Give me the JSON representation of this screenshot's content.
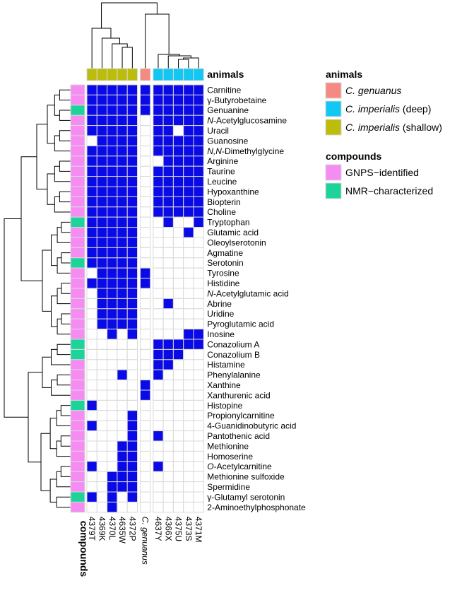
{
  "chart_data": {
    "type": "heatmap",
    "rows": [
      "Carnitine",
      "γ-Butyrobetaine",
      "Genuanine",
      "N-Acetylglucosamine",
      "Uracil",
      "Guanosine",
      "N,N-Dimethylglycine",
      "Arginine",
      "Taurine",
      "Leucine",
      "Hypoxanthine",
      "Biopterin",
      "Choline",
      "Tryptophan",
      "Glutamic acid",
      "Oleoylserotonin",
      "Agmatine",
      "Serotonin",
      "Tyrosine",
      "Histidine",
      "N-Acetylglutamic acid",
      "Abrine",
      "Uridine",
      "Pyroglutamic acid",
      "Inosine",
      "Conazolium A",
      "Conazolium B",
      "Histamine",
      "Phenylalanine",
      "Xanthine",
      "Xanthurenic acid",
      "Histopine",
      "Propionylcarnitine",
      "4-Guanidinobutyric acid",
      "Pantothenic acid",
      "Methionine",
      "Homoserine",
      "O-Acetylcarnitine",
      "Methionine sulfoxide",
      "Spermidine",
      "γ-Glutamyl serotonin",
      "2-Aminoethylphosphonate"
    ],
    "columns": [
      "4379T",
      "4369K",
      "4370L",
      "4635W",
      "4372P",
      "C. genuanus",
      "4637Y",
      "4366X",
      "4375U",
      "4373S",
      "4371M"
    ],
    "column_groups": [
      [
        0,
        1,
        2,
        3,
        4
      ],
      [
        5
      ],
      [
        6,
        7,
        8,
        9,
        10
      ]
    ],
    "values": [
      [
        1,
        1,
        1,
        1,
        1,
        1,
        1,
        1,
        1,
        1,
        1
      ],
      [
        1,
        1,
        1,
        1,
        1,
        1,
        1,
        1,
        1,
        1,
        1
      ],
      [
        1,
        1,
        1,
        1,
        1,
        1,
        1,
        1,
        1,
        1,
        1
      ],
      [
        1,
        1,
        1,
        1,
        1,
        0,
        1,
        1,
        1,
        1,
        1
      ],
      [
        1,
        1,
        1,
        1,
        1,
        0,
        1,
        1,
        0,
        1,
        1
      ],
      [
        0,
        1,
        1,
        1,
        1,
        0,
        1,
        1,
        1,
        1,
        1
      ],
      [
        1,
        1,
        1,
        1,
        1,
        0,
        1,
        1,
        1,
        1,
        1
      ],
      [
        1,
        1,
        1,
        1,
        1,
        0,
        0,
        1,
        1,
        1,
        1
      ],
      [
        1,
        1,
        1,
        1,
        1,
        0,
        1,
        1,
        1,
        1,
        1
      ],
      [
        1,
        1,
        1,
        1,
        1,
        0,
        1,
        1,
        1,
        1,
        1
      ],
      [
        1,
        1,
        1,
        1,
        1,
        0,
        1,
        1,
        1,
        1,
        1
      ],
      [
        1,
        1,
        1,
        1,
        1,
        0,
        1,
        1,
        1,
        1,
        1
      ],
      [
        1,
        1,
        1,
        1,
        1,
        0,
        1,
        1,
        1,
        1,
        1
      ],
      [
        1,
        1,
        1,
        1,
        1,
        0,
        0,
        1,
        0,
        0,
        1
      ],
      [
        1,
        1,
        1,
        1,
        1,
        0,
        0,
        0,
        0,
        1,
        0
      ],
      [
        1,
        1,
        1,
        1,
        1,
        0,
        0,
        0,
        0,
        0,
        0
      ],
      [
        1,
        1,
        1,
        1,
        1,
        0,
        0,
        0,
        0,
        0,
        0
      ],
      [
        1,
        1,
        1,
        1,
        1,
        0,
        0,
        0,
        0,
        0,
        0
      ],
      [
        0,
        1,
        1,
        1,
        1,
        1,
        0,
        0,
        0,
        0,
        0
      ],
      [
        1,
        1,
        1,
        1,
        1,
        1,
        0,
        0,
        0,
        0,
        0
      ],
      [
        0,
        1,
        1,
        1,
        1,
        0,
        0,
        0,
        0,
        0,
        0
      ],
      [
        0,
        1,
        1,
        1,
        1,
        0,
        0,
        1,
        0,
        0,
        0
      ],
      [
        0,
        1,
        1,
        1,
        1,
        0,
        0,
        0,
        0,
        0,
        0
      ],
      [
        0,
        1,
        1,
        1,
        1,
        0,
        0,
        0,
        0,
        0,
        0
      ],
      [
        0,
        0,
        1,
        0,
        1,
        0,
        0,
        0,
        0,
        1,
        1
      ],
      [
        0,
        0,
        0,
        0,
        0,
        0,
        1,
        1,
        1,
        1,
        1
      ],
      [
        0,
        0,
        0,
        0,
        0,
        0,
        1,
        1,
        1,
        0,
        0
      ],
      [
        0,
        0,
        0,
        0,
        0,
        0,
        1,
        1,
        0,
        0,
        0
      ],
      [
        0,
        0,
        0,
        1,
        0,
        0,
        1,
        0,
        0,
        0,
        0
      ],
      [
        0,
        0,
        0,
        0,
        0,
        1,
        0,
        0,
        0,
        0,
        0
      ],
      [
        0,
        0,
        0,
        0,
        0,
        1,
        0,
        0,
        0,
        0,
        0
      ],
      [
        1,
        0,
        0,
        0,
        0,
        0,
        0,
        0,
        0,
        0,
        0
      ],
      [
        0,
        0,
        0,
        0,
        1,
        0,
        0,
        0,
        0,
        0,
        0
      ],
      [
        1,
        0,
        0,
        0,
        1,
        0,
        0,
        0,
        0,
        0,
        0
      ],
      [
        0,
        0,
        0,
        0,
        1,
        0,
        1,
        0,
        0,
        0,
        0
      ],
      [
        0,
        0,
        0,
        1,
        1,
        0,
        0,
        0,
        0,
        0,
        0
      ],
      [
        0,
        0,
        0,
        1,
        1,
        0,
        0,
        0,
        0,
        0,
        0
      ],
      [
        1,
        0,
        0,
        1,
        1,
        0,
        1,
        0,
        0,
        0,
        0
      ],
      [
        0,
        0,
        1,
        1,
        1,
        0,
        0,
        0,
        0,
        0,
        0
      ],
      [
        0,
        0,
        1,
        1,
        1,
        0,
        0,
        0,
        0,
        0,
        0
      ],
      [
        1,
        0,
        1,
        0,
        1,
        0,
        0,
        0,
        0,
        0,
        0
      ],
      [
        0,
        0,
        1,
        0,
        0,
        0,
        0,
        0,
        0,
        0,
        0
      ]
    ],
    "present_color": "#0a0ae6",
    "absent_color": "#ffffff",
    "column_annotation": {
      "title": "animals",
      "values": [
        "shallow",
        "shallow",
        "shallow",
        "shallow",
        "shallow",
        "genuanus",
        "deep",
        "deep",
        "deep",
        "deep",
        "deep"
      ]
    },
    "row_annotation": {
      "title": "compounds",
      "values": [
        "GNPS",
        "GNPS",
        "NMR",
        "GNPS",
        "GNPS",
        "GNPS",
        "GNPS",
        "GNPS",
        "GNPS",
        "GNPS",
        "GNPS",
        "GNPS",
        "GNPS",
        "NMR",
        "GNPS",
        "GNPS",
        "GNPS",
        "NMR",
        "GNPS",
        "GNPS",
        "GNPS",
        "GNPS",
        "GNPS",
        "GNPS",
        "GNPS",
        "NMR",
        "NMR",
        "GNPS",
        "GNPS",
        "GNPS",
        "GNPS",
        "NMR",
        "GNPS",
        "GNPS",
        "GNPS",
        "GNPS",
        "GNPS",
        "GNPS",
        "GNPS",
        "GNPS",
        "NMR",
        "GNPS"
      ]
    },
    "legend": {
      "animals_title": "animals",
      "animals": [
        {
          "key": "genuanus",
          "italic": "C. genuanus",
          "suffix": "",
          "color": "#f48a82"
        },
        {
          "key": "deep",
          "italic": "C. imperialis",
          "suffix": " (deep)",
          "color": "#12c7f2"
        },
        {
          "key": "shallow",
          "italic": "C. imperialis",
          "suffix": " (shallow)",
          "color": "#bcbc0c"
        }
      ],
      "compounds_title": "compounds",
      "compounds": [
        {
          "key": "GNPS",
          "label": "GNPS−identified",
          "color": "#f58cf2"
        },
        {
          "key": "NMR",
          "label": "NMR−characterized",
          "color": "#1cd39a"
        }
      ]
    },
    "labels": {
      "col_annotation_label": "animals",
      "row_annotation_label": "compounds"
    }
  }
}
